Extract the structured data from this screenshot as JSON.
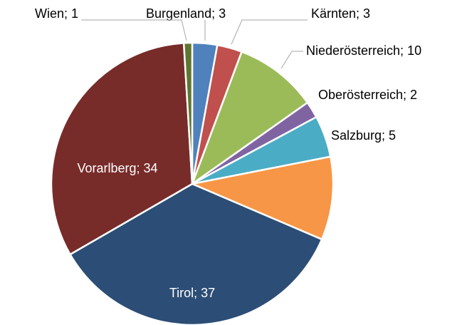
{
  "chart_data": {
    "type": "pie",
    "categories": [
      "Burgenland",
      "Kärnten",
      "Niederösterreich",
      "Oberösterreich",
      "Salzburg",
      null,
      "Tirol",
      "Vorarlberg",
      "Wien"
    ],
    "values": [
      3,
      3,
      10,
      2,
      5,
      10,
      37,
      34,
      1
    ],
    "value_labels": [
      "Burgenland; 3",
      "Kärnten; 3",
      "Niederösterreich; 10",
      "Oberösterreich; 2",
      "Salzburg; 5",
      null,
      "Tirol; 37",
      "Vorarlberg; 34",
      "Wien; 1"
    ],
    "colors": [
      "#4f81bd",
      "#c0504d",
      "#9bbb59",
      "#8064a2",
      "#4bacc6",
      "#f79646",
      "#2c4d75",
      "#772c2a",
      "#5f7530"
    ]
  }
}
